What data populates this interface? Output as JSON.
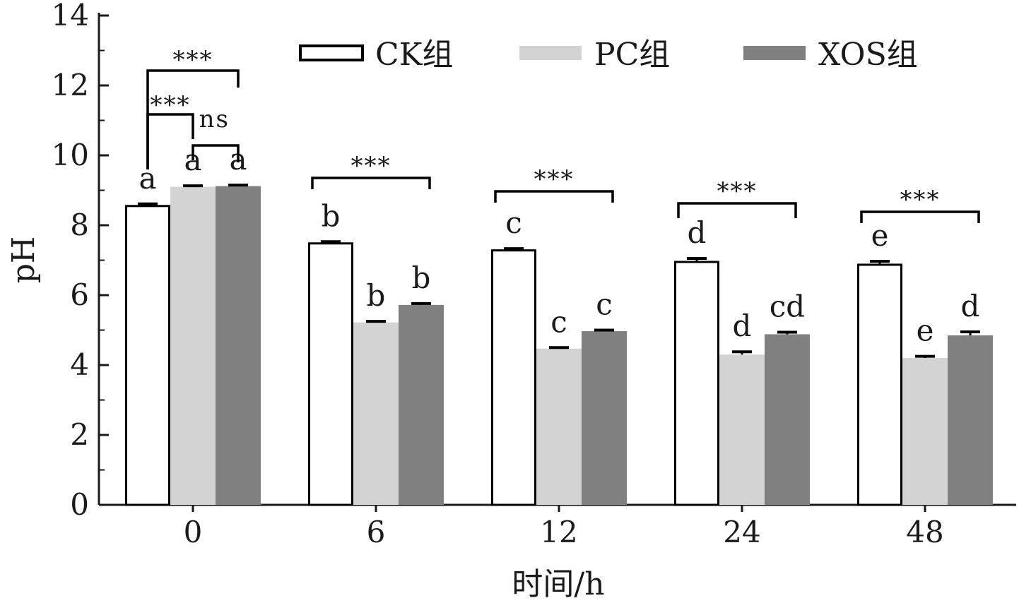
{
  "chart_data": {
    "type": "bar",
    "xlabel": "时间/h",
    "ylabel": "pH",
    "ylim": [
      0,
      14
    ],
    "yticks": [
      0,
      2,
      4,
      6,
      8,
      10,
      12,
      14
    ],
    "categories": [
      "0",
      "6",
      "12",
      "24",
      "48"
    ],
    "legend_position": "top",
    "series": [
      {
        "name": "CK组",
        "color": "#ffffff",
        "stroke": "#000000",
        "values": [
          8.55,
          7.48,
          7.28,
          6.95,
          6.87
        ],
        "errors": [
          0.06,
          0.05,
          0.05,
          0.1,
          0.1
        ],
        "letters": [
          "a",
          "b",
          "c",
          "d",
          "e"
        ]
      },
      {
        "name": "PC组",
        "color": "#d3d3d3",
        "values": [
          9.1,
          5.22,
          4.47,
          4.3,
          4.2
        ],
        "errors": [
          0.03,
          0.03,
          0.03,
          0.08,
          0.05
        ],
        "letters": [
          "a",
          "b",
          "c",
          "d",
          "e"
        ]
      },
      {
        "name": "XOS组",
        "color": "#808080",
        "values": [
          9.12,
          5.72,
          4.97,
          4.88,
          4.85
        ],
        "errors": [
          0.03,
          0.04,
          0.03,
          0.06,
          0.1
        ],
        "letters": [
          "a",
          "b",
          "c",
          "cd",
          "d"
        ]
      }
    ],
    "significance": [
      {
        "group": "0",
        "from": 0,
        "to": 2,
        "label": "***"
      },
      {
        "group": "0",
        "from": 0,
        "to": 1,
        "label": "***"
      },
      {
        "group": "0",
        "from": 1,
        "to": 2,
        "label": "ns"
      },
      {
        "group": "6",
        "from": 0,
        "to": 2,
        "label": "***"
      },
      {
        "group": "12",
        "from": 0,
        "to": 2,
        "label": "***"
      },
      {
        "group": "24",
        "from": 0,
        "to": 2,
        "label": "***"
      },
      {
        "group": "48",
        "from": 0,
        "to": 2,
        "label": "***"
      }
    ]
  }
}
